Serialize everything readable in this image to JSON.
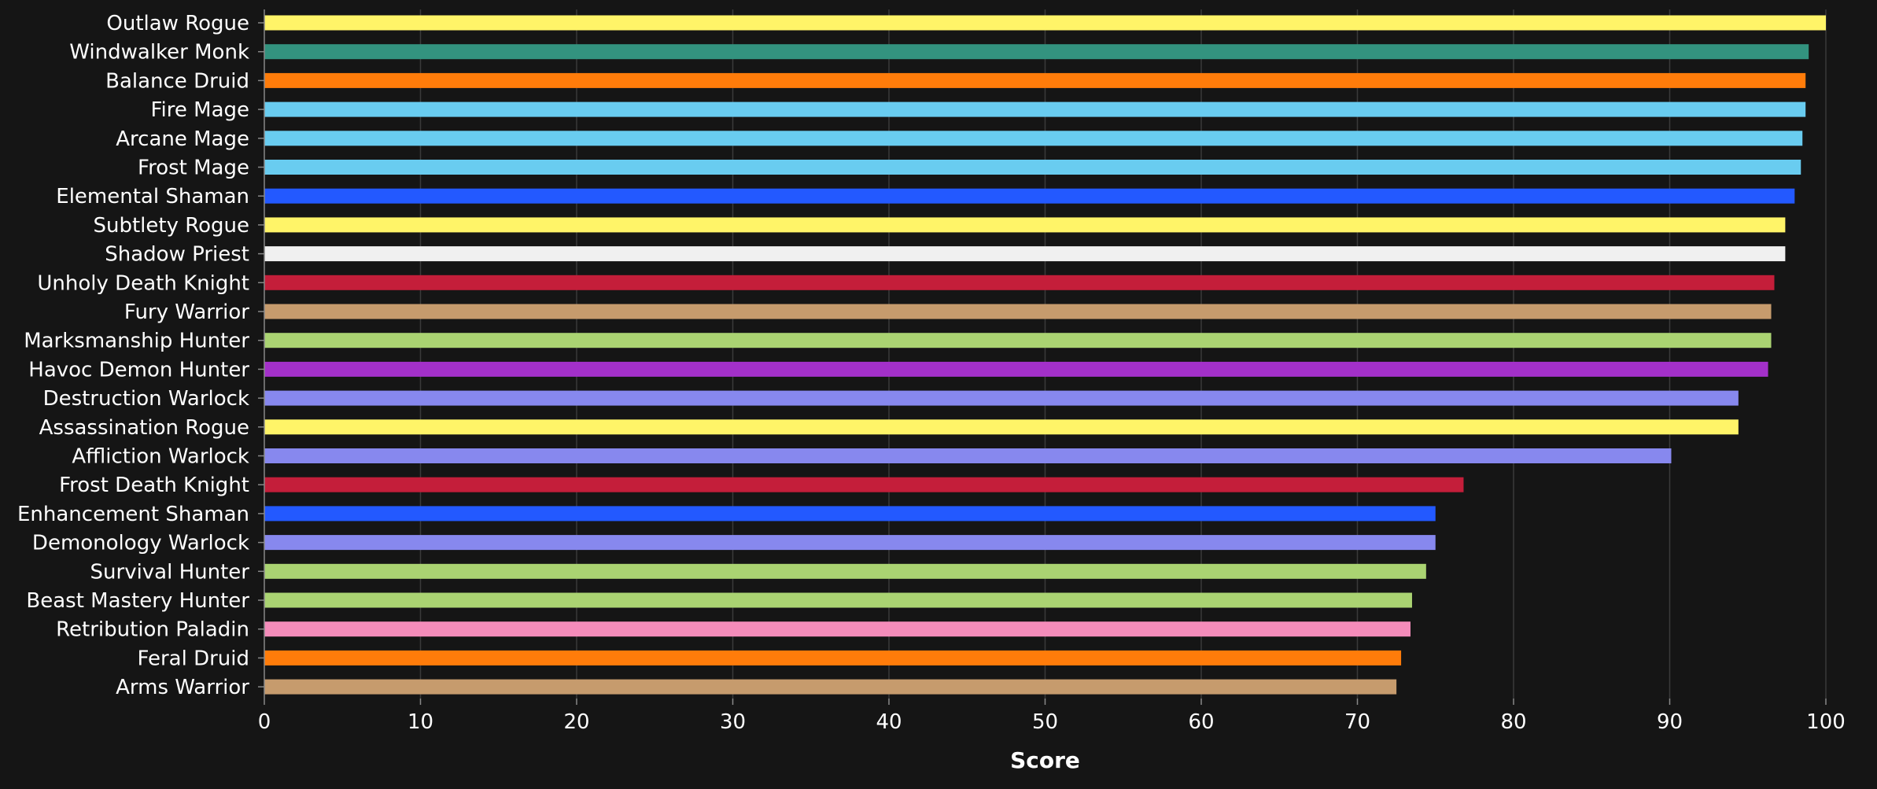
{
  "chart_data": {
    "type": "bar",
    "orientation": "horizontal",
    "categories": [
      "Outlaw Rogue",
      "Windwalker Monk",
      "Balance Druid",
      "Fire Mage",
      "Arcane Mage",
      "Frost Mage",
      "Elemental Shaman",
      "Subtlety Rogue",
      "Shadow Priest",
      "Unholy Death Knight",
      "Fury Warrior",
      "Marksmanship Hunter",
      "Havoc Demon Hunter",
      "Destruction Warlock",
      "Assassination Rogue",
      "Affliction Warlock",
      "Frost Death Knight",
      "Enhancement Shaman",
      "Demonology Warlock",
      "Survival Hunter",
      "Beast Mastery Hunter",
      "Retribution Paladin",
      "Feral Druid",
      "Arms Warrior"
    ],
    "values": [
      100,
      98.9,
      98.7,
      98.7,
      98.5,
      98.4,
      98.0,
      97.4,
      97.4,
      96.7,
      96.5,
      96.5,
      96.3,
      94.4,
      94.4,
      90.1,
      76.8,
      75.0,
      75.0,
      74.4,
      73.5,
      73.4,
      72.8,
      72.5
    ],
    "colors": [
      "#FFF468",
      "#33937F",
      "#FF7C0A",
      "#69CCF0",
      "#69CCF0",
      "#69CCF0",
      "#2359FF",
      "#FFF468",
      "#F0F0F0",
      "#C41E3A",
      "#C69B6D",
      "#AAD372",
      "#A330C9",
      "#8788EE",
      "#FFF468",
      "#8788EE",
      "#C41E3A",
      "#2359FF",
      "#8788EE",
      "#AAD372",
      "#AAD372",
      "#F48CBA",
      "#FF7C0A",
      "#C69B6D"
    ],
    "xlabel": "Score",
    "ylabel": "",
    "title": "",
    "xlim": [
      0,
      100
    ],
    "xticks": [
      "0",
      "10",
      "20",
      "30",
      "40",
      "50",
      "60",
      "70",
      "80",
      "90",
      "100"
    ],
    "grid": "vertical",
    "legend": "none",
    "background_color": "#151515",
    "grid_color": "#3a3a3a",
    "text_color": "#ffffff"
  }
}
